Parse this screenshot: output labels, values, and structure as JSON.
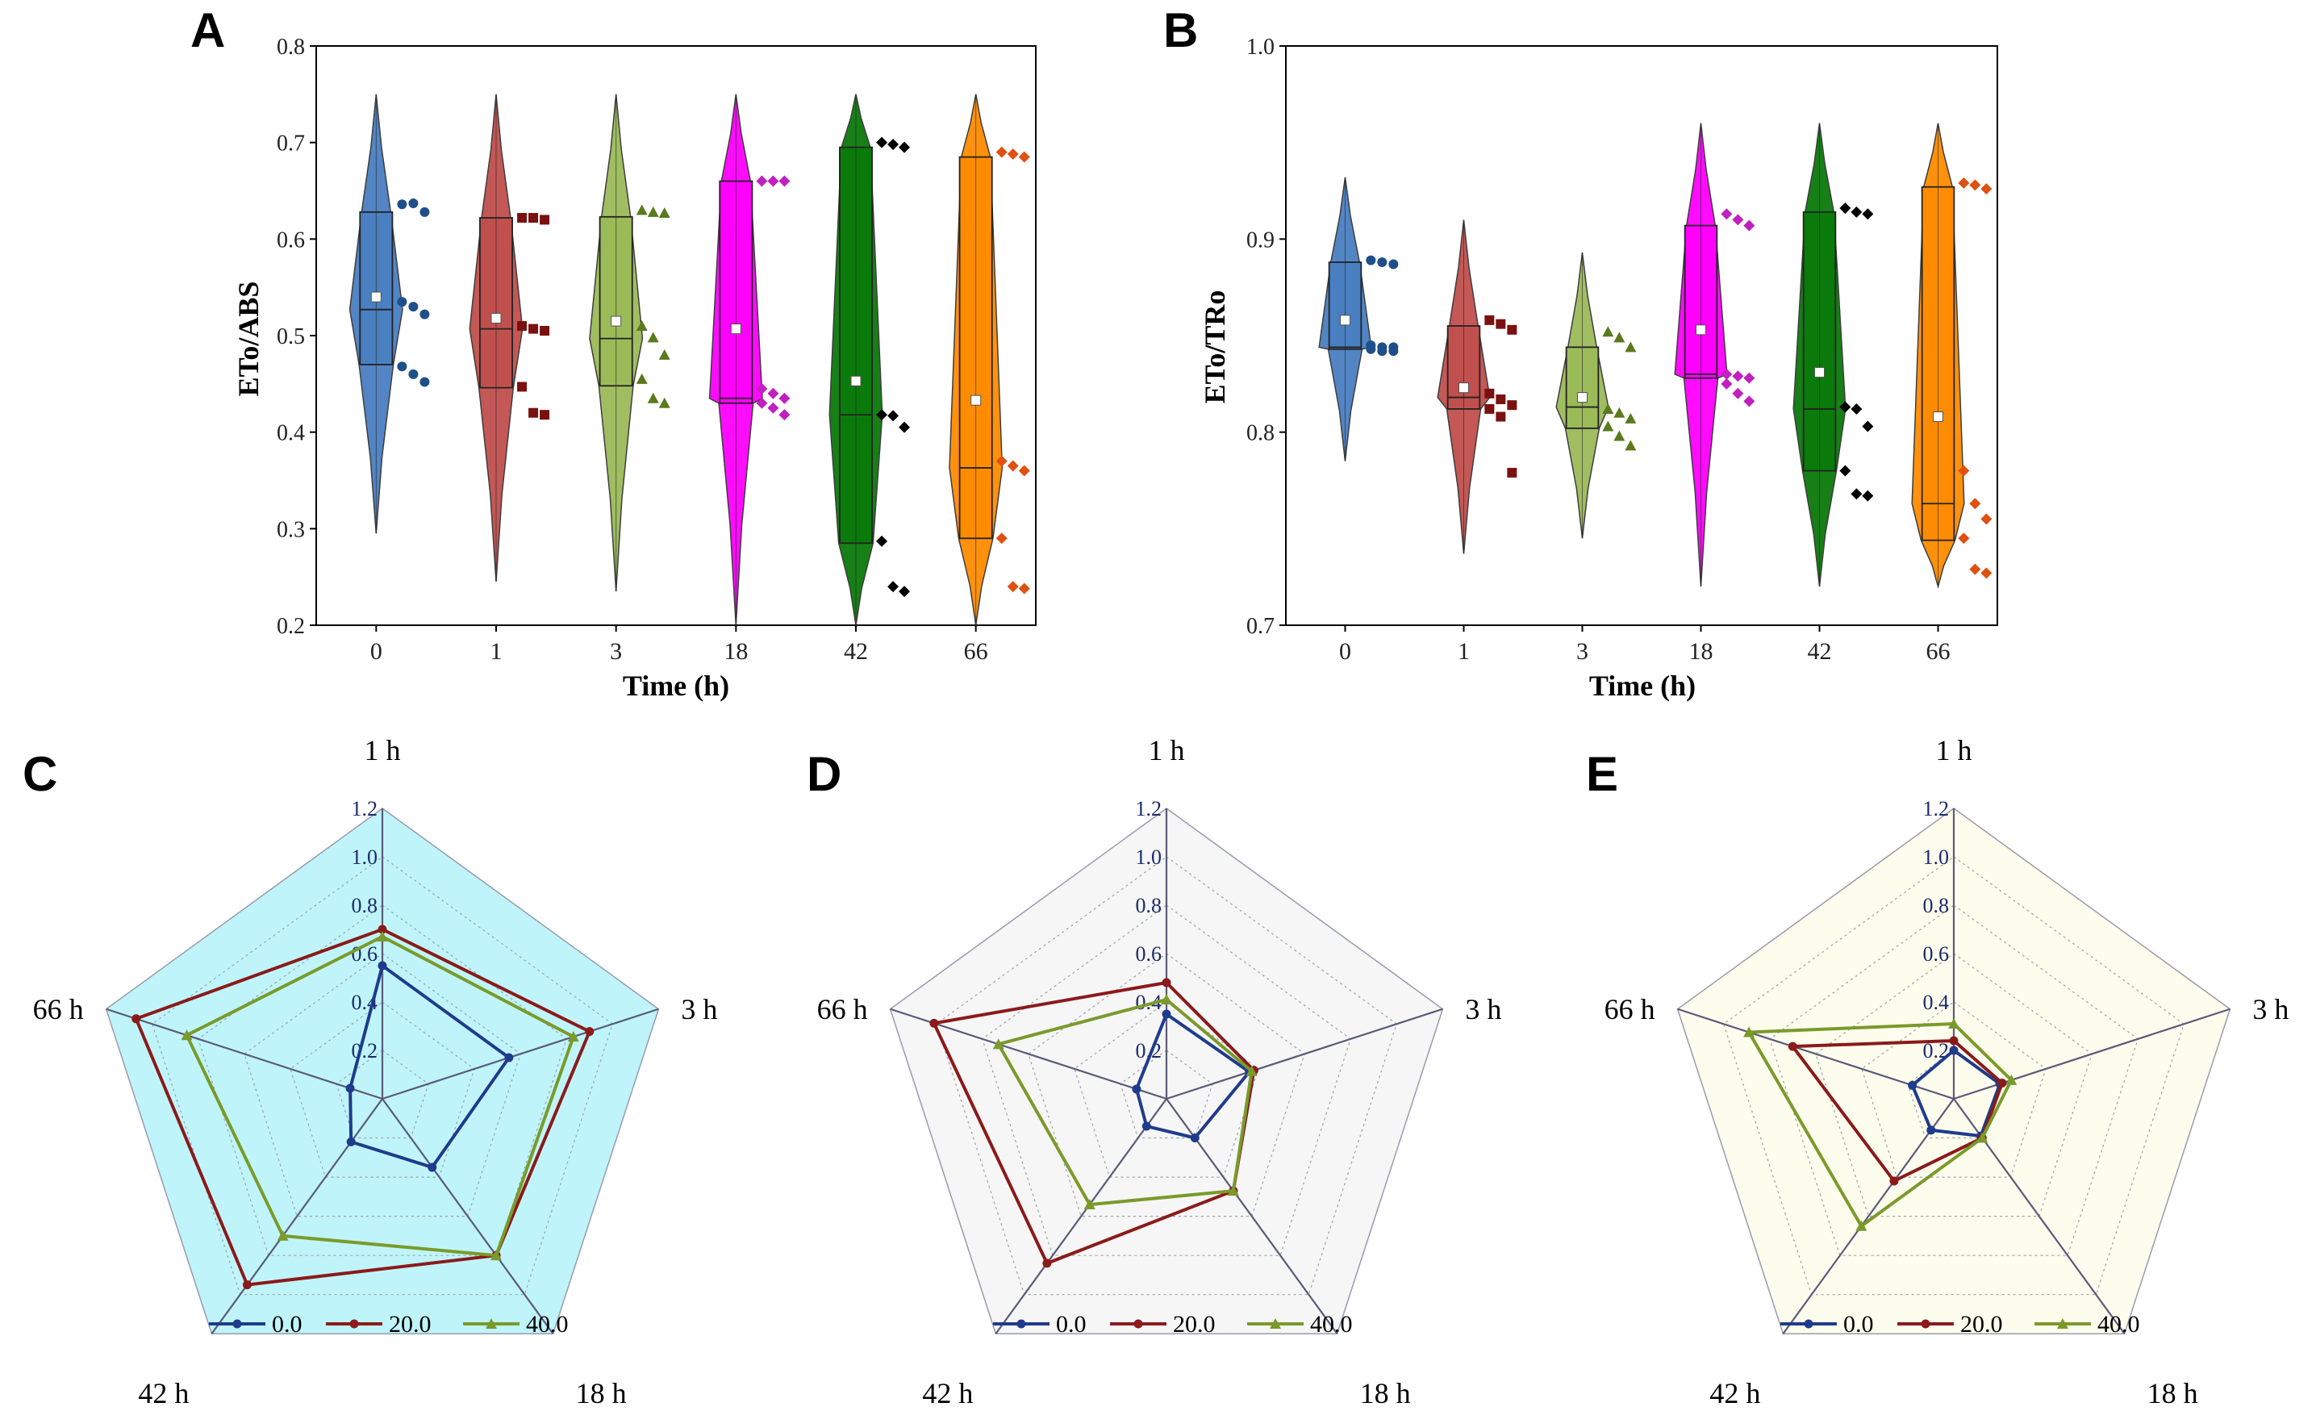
{
  "charts": {
    "A": {
      "letter": "A",
      "type": "violin-box",
      "ylabel": "ETo/ABS",
      "xlabel": "Time (h)",
      "ylim": [
        0.2,
        0.8
      ],
      "yticks": [
        "0.2",
        "0.3",
        "0.4",
        "0.5",
        "0.6",
        "0.7",
        "0.8"
      ],
      "groups": [
        {
          "label": "0",
          "color": "#4a7fc1",
          "dot_color": "#1f4f8a",
          "marker": "circle",
          "min": 0.295,
          "max": 0.75,
          "q1": 0.47,
          "median": 0.527,
          "q3": 0.628,
          "mean": 0.54,
          "points": [
            0.636,
            0.637,
            0.628,
            0.535,
            0.53,
            0.522,
            0.468,
            0.46,
            0.452
          ]
        },
        {
          "label": "1",
          "color": "#c0504d",
          "dot_color": "#7b1010",
          "marker": "square",
          "min": 0.245,
          "max": 0.75,
          "q1": 0.446,
          "median": 0.507,
          "q3": 0.622,
          "mean": 0.518,
          "points": [
            0.622,
            0.622,
            0.62,
            0.51,
            0.507,
            0.505,
            0.447,
            0.42,
            0.418
          ]
        },
        {
          "label": "3",
          "color": "#9bbb59",
          "dot_color": "#5a7a1e",
          "marker": "triangle",
          "min": 0.235,
          "max": 0.75,
          "q1": 0.448,
          "median": 0.497,
          "q3": 0.623,
          "mean": 0.515,
          "points": [
            0.63,
            0.628,
            0.627,
            0.51,
            0.498,
            0.48,
            0.455,
            0.435,
            0.43
          ]
        },
        {
          "label": "18",
          "color": "#ff00ff",
          "dot_color": "#c020c0",
          "marker": "diamond",
          "min": 0.2,
          "max": 0.75,
          "q1": 0.43,
          "median": 0.435,
          "q3": 0.66,
          "mean": 0.507,
          "points": [
            0.66,
            0.66,
            0.66,
            0.445,
            0.44,
            0.435,
            0.43,
            0.425,
            0.418
          ]
        },
        {
          "label": "42",
          "color": "#0a7a0a",
          "dot_color": "#000000",
          "marker": "diamond",
          "min": 0.2,
          "max": 0.75,
          "q1": 0.285,
          "median": 0.418,
          "q3": 0.695,
          "mean": 0.453,
          "points": [
            0.7,
            0.698,
            0.695,
            0.418,
            0.417,
            0.405,
            0.287,
            0.24,
            0.235
          ]
        },
        {
          "label": "66",
          "color": "#ff8c00",
          "dot_color": "#e05010",
          "marker": "diamond",
          "min": 0.2,
          "max": 0.75,
          "q1": 0.29,
          "median": 0.363,
          "q3": 0.685,
          "mean": 0.433,
          "points": [
            0.69,
            0.688,
            0.685,
            0.37,
            0.365,
            0.36,
            0.29,
            0.24,
            0.238
          ]
        }
      ]
    },
    "B": {
      "letter": "B",
      "type": "violin-box",
      "ylabel": "ETo/TRo",
      "xlabel": "Time (h)",
      "ylim": [
        0.7,
        1.0
      ],
      "yticks": [
        "0.7",
        "0.8",
        "0.9",
        "1.0"
      ],
      "groups": [
        {
          "label": "0",
          "color": "#4a7fc1",
          "dot_color": "#1f4f8a",
          "marker": "circle",
          "min": 0.785,
          "max": 0.932,
          "q1": 0.843,
          "median": 0.844,
          "q3": 0.888,
          "mean": 0.858,
          "points": [
            0.889,
            0.888,
            0.887,
            0.845,
            0.844,
            0.844,
            0.843,
            0.842,
            0.842
          ]
        },
        {
          "label": "1",
          "color": "#c0504d",
          "dot_color": "#7b1010",
          "marker": "square",
          "min": 0.737,
          "max": 0.91,
          "q1": 0.812,
          "median": 0.818,
          "q3": 0.855,
          "mean": 0.823,
          "points": [
            0.858,
            0.856,
            0.853,
            0.82,
            0.817,
            0.814,
            0.812,
            0.808,
            0.779
          ]
        },
        {
          "label": "3",
          "color": "#9bbb59",
          "dot_color": "#5a7a1e",
          "marker": "triangle",
          "min": 0.745,
          "max": 0.893,
          "q1": 0.802,
          "median": 0.813,
          "q3": 0.844,
          "mean": 0.818,
          "points": [
            0.852,
            0.849,
            0.844,
            0.812,
            0.81,
            0.807,
            0.803,
            0.798,
            0.793
          ]
        },
        {
          "label": "18",
          "color": "#ff00ff",
          "dot_color": "#c020c0",
          "marker": "diamond",
          "min": 0.72,
          "max": 0.96,
          "q1": 0.828,
          "median": 0.83,
          "q3": 0.907,
          "mean": 0.853,
          "points": [
            0.913,
            0.91,
            0.907,
            0.83,
            0.829,
            0.828,
            0.825,
            0.82,
            0.816
          ]
        },
        {
          "label": "42",
          "color": "#0a7a0a",
          "dot_color": "#000000",
          "marker": "diamond",
          "min": 0.72,
          "max": 0.96,
          "q1": 0.78,
          "median": 0.812,
          "q3": 0.914,
          "mean": 0.831,
          "points": [
            0.916,
            0.914,
            0.913,
            0.813,
            0.812,
            0.803,
            0.78,
            0.768,
            0.767
          ]
        },
        {
          "label": "66",
          "color": "#ff8c00",
          "dot_color": "#e05010",
          "marker": "diamond",
          "min": 0.72,
          "max": 0.96,
          "q1": 0.744,
          "median": 0.763,
          "q3": 0.927,
          "mean": 0.808,
          "points": [
            0.929,
            0.928,
            0.926,
            0.78,
            0.763,
            0.755,
            0.745,
            0.729,
            0.727
          ]
        }
      ]
    },
    "C": {
      "letter": "C",
      "type": "radar",
      "background": "#bff5fa",
      "rmax": 1.2,
      "rticks": [
        "0.2",
        "0.4",
        "0.6",
        "0.8",
        "1.0",
        "1.2"
      ],
      "categories": [
        "1 h",
        "3 h",
        "18 h",
        "42 h",
        "66 h"
      ],
      "series": [
        {
          "name": "0.0",
          "color": "#1f3b8c",
          "values": [
            0.55,
            0.55,
            0.35,
            0.22,
            0.14
          ]
        },
        {
          "name": "20.0",
          "color": "#8b1a1a",
          "values": [
            0.7,
            0.9,
            0.8,
            0.95,
            1.07
          ]
        },
        {
          "name": "40.0",
          "color": "#7a9a2a",
          "values": [
            0.67,
            0.83,
            0.8,
            0.7,
            0.85
          ]
        }
      ]
    },
    "D": {
      "letter": "D",
      "type": "radar",
      "background": "#f6f6f6",
      "rmax": 1.2,
      "rticks": [
        "0.2",
        "0.4",
        "0.6",
        "0.8",
        "1.0",
        "1.2"
      ],
      "categories": [
        "1 h",
        "3 h",
        "18 h",
        "42 h",
        "66 h"
      ],
      "series": [
        {
          "name": "0.0",
          "color": "#1f3b8c",
          "values": [
            0.35,
            0.36,
            0.2,
            0.14,
            0.13
          ]
        },
        {
          "name": "20.0",
          "color": "#8b1a1a",
          "values": [
            0.48,
            0.38,
            0.47,
            0.84,
            1.01
          ]
        },
        {
          "name": "40.0",
          "color": "#7a9a2a",
          "values": [
            0.41,
            0.37,
            0.47,
            0.54,
            0.73
          ]
        }
      ]
    },
    "E": {
      "letter": "E",
      "type": "radar",
      "background": "#fdfdee",
      "rmax": 1.2,
      "rticks": [
        "0.2",
        "0.4",
        "0.6",
        "0.8",
        "1.0",
        "1.2"
      ],
      "categories": [
        "1 h",
        "3 h",
        "18 h",
        "42 h",
        "66 h"
      ],
      "series": [
        {
          "name": "0.0",
          "color": "#1f3b8c",
          "values": [
            0.2,
            0.2,
            0.19,
            0.16,
            0.18
          ]
        },
        {
          "name": "20.0",
          "color": "#8b1a1a",
          "values": [
            0.24,
            0.21,
            0.2,
            0.42,
            0.7
          ]
        },
        {
          "name": "40.0",
          "color": "#7a9a2a",
          "values": [
            0.31,
            0.25,
            0.2,
            0.65,
            0.89
          ]
        }
      ]
    }
  }
}
